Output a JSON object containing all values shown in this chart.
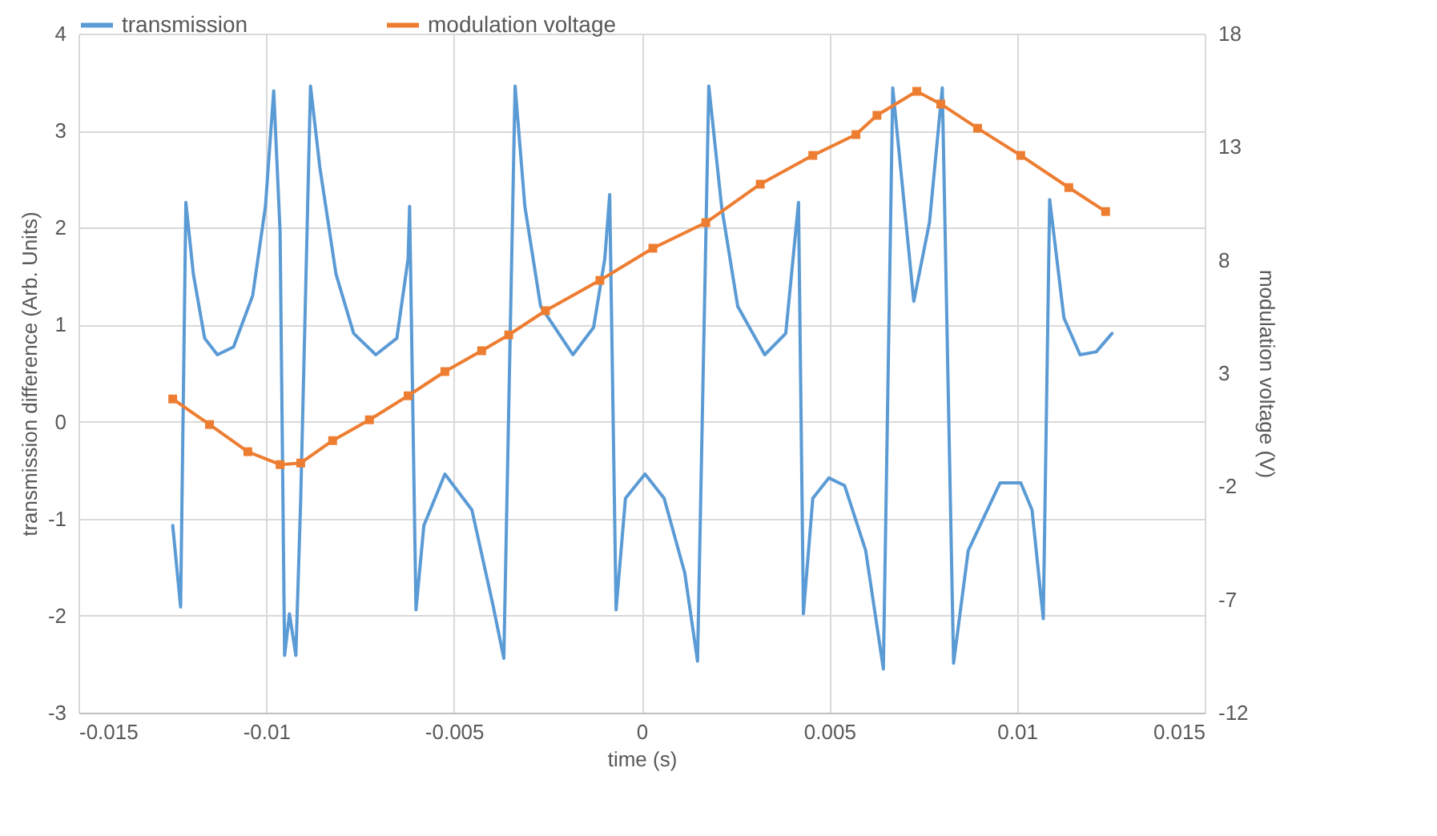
{
  "chart_data": {
    "type": "line",
    "xlabel": "time (s)",
    "ylabel": "transmission difference (Arb. Units)",
    "y2label": "modulation voltage (V)",
    "xlim": [
      -0.015,
      0.015
    ],
    "xticks": [
      -0.015,
      -0.01,
      -0.005,
      0,
      0.005,
      0.01,
      0.015
    ],
    "ylim": [
      -3,
      4
    ],
    "yticks": [
      -3,
      -2,
      -1,
      0,
      1,
      2,
      3,
      4
    ],
    "y2lim": [
      -12,
      18
    ],
    "y2ticks": [
      -12,
      -7,
      -2,
      3,
      8,
      13,
      18
    ],
    "grid": true,
    "legend": "top",
    "series": [
      {
        "name": "transmission",
        "color": "#5b9bd5",
        "marker": "none",
        "x": [
          -0.01249,
          -0.01228,
          -0.01214,
          -0.01194,
          -0.01164,
          -0.0113,
          -0.01087,
          -0.01036,
          -0.01002,
          -0.0098,
          -0.00963,
          -0.00951,
          -0.00938,
          -0.00921,
          -0.00908,
          -0.00882,
          -0.00857,
          -0.00814,
          -0.00767,
          -0.00708,
          -0.00652,
          -0.00622,
          -0.00618,
          -0.00601,
          -0.0058,
          -0.00524,
          -0.00452,
          -0.00396,
          -0.00367,
          -0.00337,
          -0.00311,
          -0.00269,
          -0.00183,
          -0.00128,
          -0.00098,
          -0.00085,
          -0.00068,
          -0.00043,
          9e-05,
          0.0006,
          0.00115,
          0.00149,
          0.00179,
          0.00213,
          0.00256,
          0.00328,
          0.00384,
          0.00418,
          0.00431,
          0.00456,
          0.00499,
          0.00541,
          0.00597,
          0.00644,
          0.00669,
          0.00725,
          0.00767,
          0.00801,
          0.00831,
          0.0087,
          0.00955,
          0.0101,
          0.0104,
          0.0107,
          0.01087,
          0.01125,
          0.01168,
          0.01211,
          0.01253
        ],
        "values": [
          -1.07,
          -1.91,
          2.26,
          1.52,
          0.86,
          0.69,
          0.77,
          1.3,
          2.22,
          3.41,
          1.96,
          -2.41,
          -1.98,
          -2.41,
          -0.79,
          3.46,
          2.62,
          1.52,
          0.91,
          0.69,
          0.86,
          1.68,
          2.22,
          -1.94,
          -1.07,
          -0.54,
          -0.91,
          -1.89,
          -2.44,
          3.46,
          2.22,
          1.19,
          0.69,
          0.97,
          1.68,
          2.34,
          -1.94,
          -0.79,
          -0.54,
          -0.79,
          -1.56,
          -2.47,
          3.46,
          2.22,
          1.19,
          0.69,
          0.91,
          2.26,
          -1.98,
          -0.79,
          -0.58,
          -0.66,
          -1.33,
          -2.55,
          3.44,
          1.24,
          2.06,
          3.44,
          -2.49,
          -1.33,
          -0.63,
          -0.63,
          -0.91,
          -2.03,
          2.29,
          1.07,
          0.69,
          0.72,
          0.91
        ]
      },
      {
        "name": "modulation voltage",
        "color": "#ed7d31",
        "marker": "square",
        "axis": "y2",
        "x": [
          -0.01249,
          -0.01151,
          -0.01049,
          -0.00963,
          -0.00908,
          -0.00823,
          -0.00725,
          -0.00622,
          -0.00524,
          -0.00426,
          -0.00354,
          -0.00256,
          -0.00111,
          0.0003,
          0.00171,
          0.00316,
          0.00456,
          0.00571,
          0.00627,
          0.00733,
          0.00797,
          0.00895,
          0.0101,
          0.01138,
          0.01236
        ],
        "values": [
          1.86,
          0.73,
          -0.47,
          -1.04,
          -0.97,
          0.02,
          0.94,
          2.0,
          3.07,
          3.99,
          4.69,
          5.76,
          7.1,
          8.52,
          9.65,
          11.35,
          12.62,
          13.54,
          14.39,
          15.45,
          14.89,
          13.82,
          12.62,
          11.2,
          10.14
        ]
      }
    ]
  }
}
